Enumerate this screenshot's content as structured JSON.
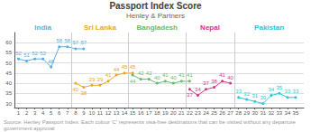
{
  "chart_data": {
    "type": "line",
    "title": "Passport Index Score",
    "subtitle": "Henley & Partners",
    "source": "Source: Henley Passport Index. Each colour 'C' represents visa-free destinations that can be visited without any departure government approval",
    "marker": "circle",
    "data_labels": true,
    "grid": true,
    "xlim": [
      0.5,
      36
    ],
    "xticks": [
      1,
      2,
      3,
      4,
      5,
      6,
      7,
      8,
      9,
      10,
      11,
      12,
      13,
      14,
      15,
      16,
      17,
      18,
      19,
      20,
      21,
      22,
      23,
      24,
      25,
      26,
      27,
      28,
      29,
      30,
      31,
      32,
      33,
      34,
      35
    ],
    "ylim": [
      28,
      65
    ],
    "yticks": [
      30,
      35,
      40,
      45,
      50,
      55,
      60
    ],
    "series": [
      {
        "name": "India",
        "color": "#5aade0",
        "x": [
          1,
          2,
          3,
          4,
          5,
          6,
          7,
          8,
          9
        ],
        "values": [
          52,
          51,
          52,
          52,
          48,
          58,
          58,
          57,
          57
        ]
      },
      {
        "name": "Sri Lanka",
        "color": "#e8a820",
        "x": [
          8,
          9,
          10,
          11,
          12,
          13,
          14,
          15
        ],
        "values": [
          40,
          38,
          39,
          39,
          41,
          44,
          45,
          45
        ]
      },
      {
        "name": "Bangladesh",
        "color": "#66bb6a",
        "x": [
          15,
          16,
          17,
          18,
          19,
          20,
          21,
          22
        ],
        "values": [
          44,
          42,
          42,
          40,
          41,
          40,
          41,
          41
        ]
      },
      {
        "name": "Nepal",
        "color": "#d63384",
        "x": [
          22,
          23,
          24,
          25,
          26,
          27
        ],
        "values": [
          37,
          34,
          37,
          38,
          41,
          40
        ]
      },
      {
        "name": "Pakistan",
        "color": "#26c6da",
        "x": [
          28,
          29,
          30,
          31,
          32,
          33,
          34,
          35
        ],
        "values": [
          33,
          32,
          31,
          30,
          34,
          35,
          33,
          33
        ]
      }
    ]
  }
}
